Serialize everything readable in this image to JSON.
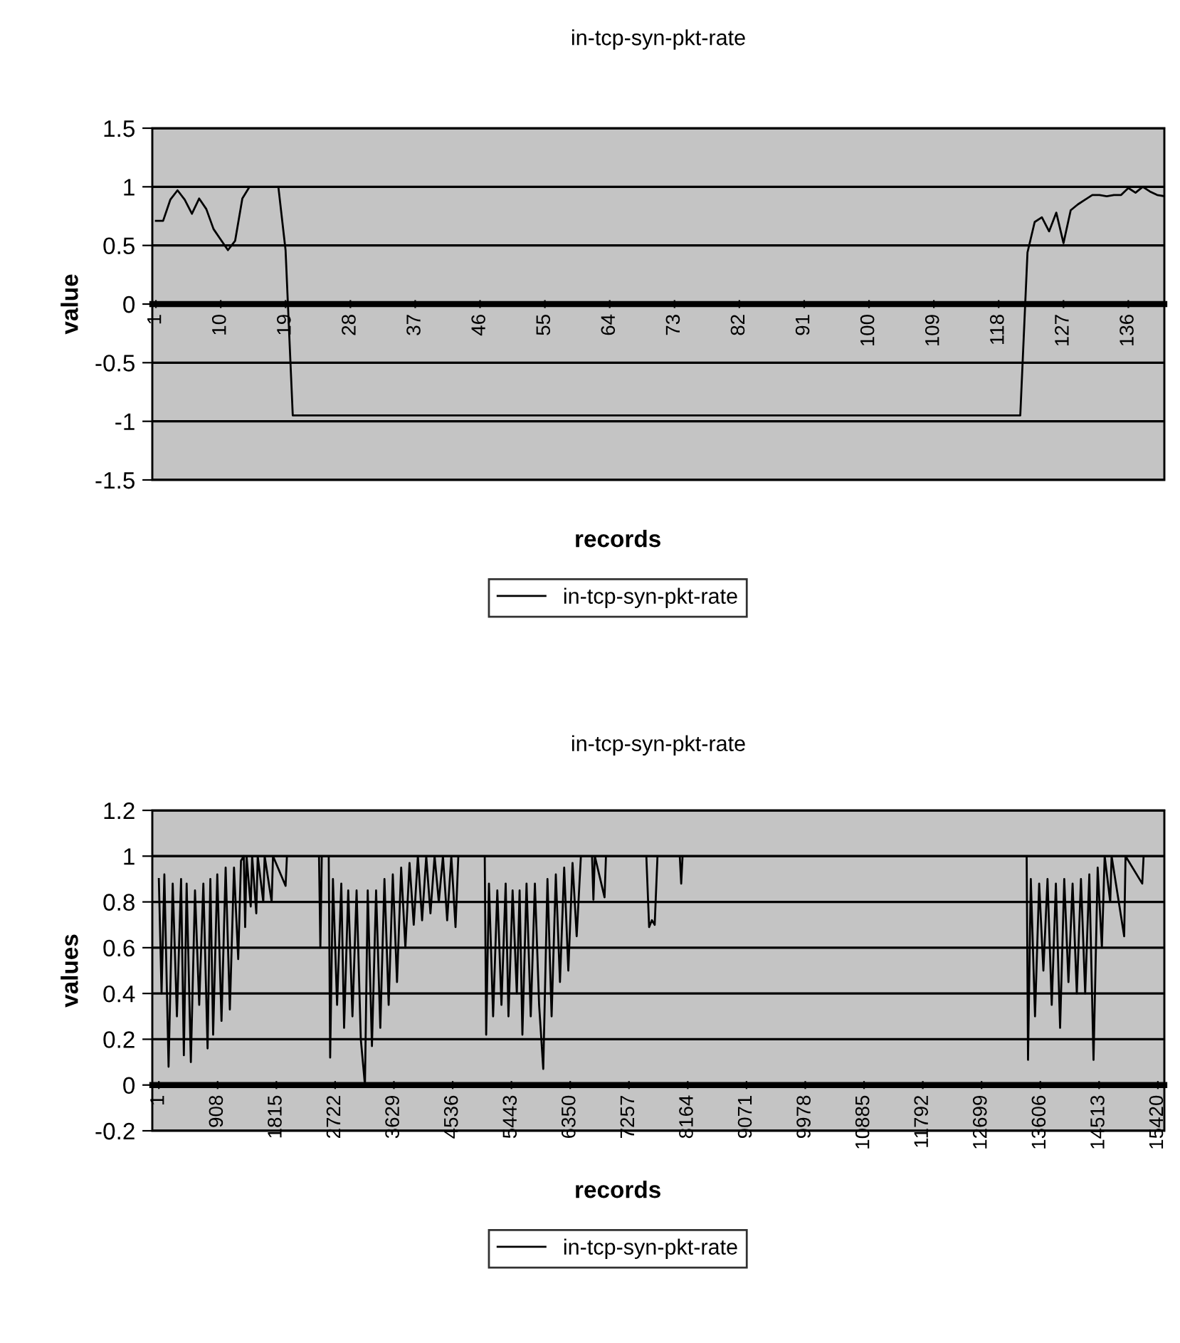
{
  "chart_data": [
    {
      "type": "line",
      "title": "in-tcp-syn-pkt-rate",
      "xlabel": "records",
      "ylabel": "value",
      "xlim": [
        0.5,
        141
      ],
      "xticks": [
        1,
        10,
        19,
        28,
        37,
        46,
        55,
        64,
        73,
        82,
        91,
        100,
        109,
        118,
        127,
        136
      ],
      "ylim": [
        -1.5,
        1.5
      ],
      "yticks": [
        -1.5,
        -1,
        -0.5,
        0,
        0.5,
        1,
        1.5
      ],
      "grid": "y",
      "legend": "bottom",
      "marker": "none",
      "line_style": "solid",
      "series": [
        {
          "name": "in-tcp-syn-pkt-rate",
          "color": "#000000",
          "x": [
            1,
            2,
            3,
            4,
            5,
            6,
            7,
            8,
            9,
            10,
            11,
            12,
            13,
            14,
            17,
            18,
            19,
            20,
            121,
            122,
            123,
            124,
            125,
            126,
            127,
            128,
            129,
            130,
            131,
            132,
            133,
            134,
            135,
            136,
            137,
            138,
            139,
            140,
            141
          ],
          "values": [
            0.71,
            0.71,
            0.89,
            0.97,
            0.89,
            0.77,
            0.9,
            0.81,
            0.64,
            0.55,
            0.46,
            0.54,
            0.9,
            1,
            1,
            1,
            0.46,
            -0.95,
            -0.95,
            0.44,
            0.7,
            0.74,
            0.62,
            0.78,
            0.52,
            0.8,
            0.85,
            0.89,
            0.93,
            0.93,
            0.92,
            0.93,
            0.93,
            0.99,
            0.95,
            1,
            0.96,
            0.93,
            0.92
          ]
        }
      ]
    },
    {
      "type": "line",
      "title": "in-tcp-syn-pkt-rate",
      "xlabel": "records",
      "ylabel": "values",
      "xlim": [
        -100,
        15520
      ],
      "xticks": [
        1,
        908,
        1815,
        2722,
        3629,
        4536,
        5443,
        6350,
        7257,
        8164,
        9071,
        9978,
        10885,
        11792,
        12699,
        13606,
        14513,
        15420
      ],
      "ylim": [
        -0.2,
        1.2
      ],
      "yticks": [
        -0.2,
        0,
        0.2,
        0.4,
        0.6,
        0.8,
        1,
        1.2
      ],
      "grid": "y",
      "legend": "bottom",
      "marker": "none",
      "line_style": "solid",
      "series": [
        {
          "name": "in-tcp-syn-pkt-rate",
          "color": "#000000",
          "x": [
            1,
            43,
            86,
            151,
            215,
            280,
            344,
            387,
            430,
            495,
            559,
            624,
            688,
            753,
            796,
            839,
            903,
            968,
            1032,
            1097,
            1161,
            1226,
            1269,
            1312,
            1333,
            1355,
            1419,
            1441,
            1505,
            1527,
            1613,
            1634,
            1742,
            1763,
            1957,
            1978,
            2473,
            2494,
            2516,
            2623,
            2645,
            2688,
            2752,
            2817,
            2860,
            2924,
            2989,
            3053,
            3118,
            3182,
            3225,
            3290,
            3354,
            3419,
            3483,
            3548,
            3612,
            3677,
            3741,
            3806,
            3870,
            3935,
            3999,
            4064,
            4128,
            4193,
            4257,
            4322,
            4386,
            4451,
            4515,
            4580,
            4623,
            5031,
            5053,
            5096,
            5160,
            5225,
            5289,
            5354,
            5397,
            5461,
            5526,
            5569,
            5612,
            5676,
            5741,
            5805,
            5870,
            5934,
            5999,
            6063,
            6128,
            6192,
            6257,
            6321,
            6386,
            6450,
            6515,
            6687,
            6708,
            6730,
            6880,
            6902,
            7525,
            7568,
            7611,
            7654,
            7697,
            8041,
            8063,
            8084,
            13395,
            13416,
            13459,
            13524,
            13588,
            13653,
            13717,
            13782,
            13846,
            13911,
            13975,
            14040,
            14104,
            14169,
            14233,
            14298,
            14362,
            14427,
            14491,
            14556,
            14599,
            14685,
            14706,
            14900,
            14921,
            15179,
            15200,
            15520
          ],
          "values": [
            0.9,
            0.4,
            0.92,
            0.08,
            0.88,
            0.3,
            0.9,
            0.13,
            0.88,
            0.1,
            0.85,
            0.35,
            0.88,
            0.16,
            0.9,
            0.22,
            0.92,
            0.28,
            0.95,
            0.33,
            0.95,
            0.55,
            0.98,
            1,
            0.69,
            1,
            0.78,
            1,
            0.75,
            1,
            0.8,
            1,
            0.8,
            1,
            0.87,
            1,
            1,
            0.6,
            1,
            1,
            0.12,
            0.9,
            0.35,
            0.88,
            0.25,
            0.85,
            0.3,
            0.85,
            0.2,
            0.0,
            0.85,
            0.17,
            0.85,
            0.25,
            0.9,
            0.35,
            0.92,
            0.45,
            0.95,
            0.6,
            0.97,
            0.7,
            1,
            0.72,
            1,
            0.75,
            1,
            0.8,
            1,
            0.72,
            1,
            0.69,
            1,
            1,
            0.22,
            0.88,
            0.3,
            0.85,
            0.35,
            0.88,
            0.3,
            0.85,
            0.4,
            0.85,
            0.22,
            0.88,
            0.3,
            0.88,
            0.35,
            0.07,
            0.9,
            0.3,
            0.92,
            0.45,
            0.95,
            0.5,
            0.97,
            0.65,
            1,
            1,
            0.81,
            1,
            0.82,
            1,
            1,
            0.69,
            0.72,
            0.7,
            1,
            1,
            0.88,
            1,
            1,
            0.11,
            0.9,
            0.3,
            0.88,
            0.5,
            0.9,
            0.35,
            0.88,
            0.25,
            0.9,
            0.45,
            0.88,
            0.4,
            0.9,
            0.4,
            0.92,
            0.11,
            0.95,
            0.6,
            1,
            0.8,
            1,
            0.65,
            1,
            0.88,
            1,
            1
          ]
        }
      ]
    }
  ]
}
